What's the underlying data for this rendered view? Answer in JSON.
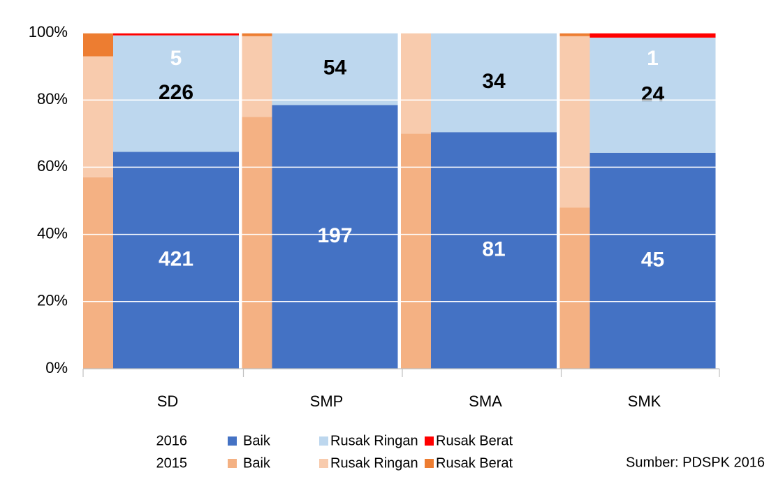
{
  "chart_data": {
    "type": "stacked_percent_bar",
    "categories": [
      "SD",
      "SMP",
      "SMA",
      "SMK"
    ],
    "ylim": [
      0,
      100
    ],
    "yticks": [
      {
        "value": 0,
        "label": "0%"
      },
      {
        "value": 20,
        "label": "20%"
      },
      {
        "value": 40,
        "label": "40%"
      },
      {
        "value": 60,
        "label": "60%"
      },
      {
        "value": 80,
        "label": "80%"
      },
      {
        "value": 100,
        "label": "100%"
      }
    ],
    "grid": true,
    "groups": [
      {
        "name": "2016",
        "show_labels": true,
        "series": [
          {
            "name": "Baik",
            "color": "#4472c4",
            "label_color": "#ffffff",
            "values": [
              421,
              197,
              81,
              45
            ]
          },
          {
            "name": "Rusak Ringan",
            "color": "#bdd7ee",
            "label_color": "#000000",
            "values": [
              226,
              54,
              34,
              24
            ]
          },
          {
            "name": "Rusak Berat",
            "color": "#ff0000",
            "label_color": "#ffffff",
            "values": [
              5,
              0,
              0,
              1
            ]
          }
        ]
      },
      {
        "name": "2015",
        "show_labels": false,
        "series": [
          {
            "name": "Baik",
            "color": "#f4b183",
            "values": [
              57,
              75,
              70,
              48
            ]
          },
          {
            "name": "Rusak Ringan",
            "color": "#f8cbad",
            "values": [
              36,
              24,
              30,
              51
            ]
          },
          {
            "name": "Rusak Berat",
            "color": "#ed7d31",
            "values": [
              7,
              1,
              0,
              1
            ]
          }
        ]
      }
    ],
    "source": "Sumber:  PDSPK 2016"
  }
}
